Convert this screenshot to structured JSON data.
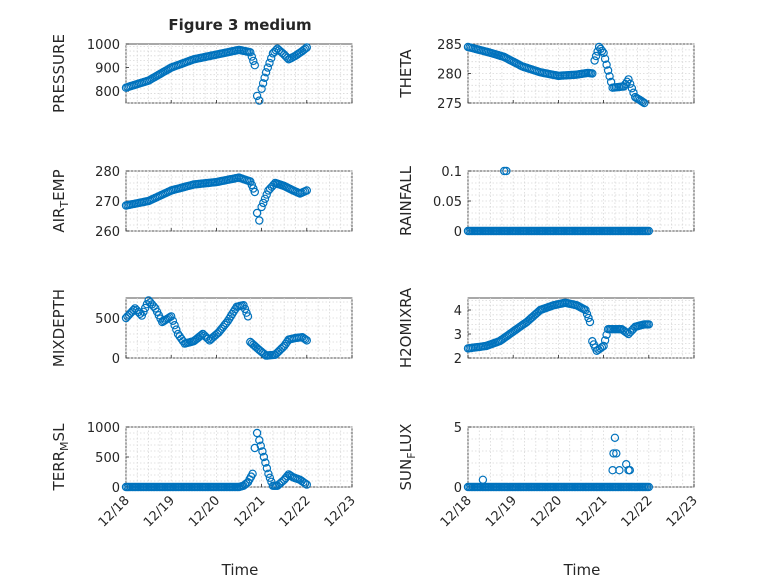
{
  "figure": {
    "title": "Figure 3 medium",
    "xlabel": "Time",
    "xticks": [
      "12/18",
      "12/19",
      "12/20",
      "12/21",
      "12/22",
      "12/23"
    ]
  },
  "chart_data": [
    {
      "type": "scatter",
      "id": "pressure",
      "title": "Figure 3 medium",
      "ylabel": "PRESSURE",
      "xlim": [
        0,
        5
      ],
      "ylim": [
        750,
        1000
      ],
      "yticks": [
        "800",
        "900",
        "1000"
      ],
      "ytick_values": [
        800,
        900,
        1000
      ],
      "xticks": [
        "12/18",
        "12/19",
        "12/20",
        "12/21",
        "12/22",
        "12/23"
      ],
      "keypoints": [
        [
          0,
          815
        ],
        [
          0.5,
          845
        ],
        [
          1,
          900
        ],
        [
          1.5,
          935
        ],
        [
          2,
          955
        ],
        [
          2.5,
          975
        ],
        [
          2.75,
          965
        ],
        [
          2.85,
          910
        ],
        [
          2.9,
          780
        ],
        [
          2.95,
          760
        ],
        [
          3.0,
          810
        ],
        [
          3.1,
          880
        ],
        [
          3.25,
          960
        ],
        [
          3.35,
          980
        ],
        [
          3.5,
          955
        ],
        [
          3.6,
          935
        ],
        [
          3.75,
          950
        ],
        [
          3.9,
          970
        ],
        [
          4.0,
          985
        ]
      ]
    },
    {
      "type": "scatter",
      "id": "theta",
      "title": "",
      "ylabel": "THETA",
      "xlim": [
        0,
        5
      ],
      "ylim": [
        275,
        285
      ],
      "yticks": [
        "275",
        "280",
        "285"
      ],
      "ytick_values": [
        275,
        280,
        285
      ],
      "xticks": [
        "12/18",
        "12/19",
        "12/20",
        "12/21",
        "12/22",
        "12/23"
      ],
      "keypoints": [
        [
          0,
          284.5
        ],
        [
          0.5,
          283.5
        ],
        [
          0.8,
          282.8
        ],
        [
          1.2,
          281.2
        ],
        [
          1.6,
          280.2
        ],
        [
          2.0,
          279.6
        ],
        [
          2.4,
          279.8
        ],
        [
          2.65,
          280.1
        ],
        [
          2.75,
          280.0
        ],
        [
          2.8,
          282.2
        ],
        [
          2.9,
          284.5
        ],
        [
          3.0,
          283.5
        ],
        [
          3.1,
          280.5
        ],
        [
          3.2,
          277.6
        ],
        [
          3.45,
          277.8
        ],
        [
          3.55,
          279.0
        ],
        [
          3.7,
          276.0
        ],
        [
          3.9,
          275.0
        ]
      ]
    },
    {
      "type": "scatter",
      "id": "air_temp",
      "title": "",
      "ylabel": "AIR_TEMP",
      "xlim": [
        0,
        5
      ],
      "ylim": [
        260,
        280
      ],
      "yticks": [
        "260",
        "270",
        "280"
      ],
      "ytick_values": [
        260,
        270,
        280
      ],
      "xticks": [
        "12/18",
        "12/19",
        "12/20",
        "12/21",
        "12/22",
        "12/23"
      ],
      "keypoints": [
        [
          0,
          268.5
        ],
        [
          0.5,
          270
        ],
        [
          1,
          273.5
        ],
        [
          1.5,
          275.5
        ],
        [
          2,
          276.3
        ],
        [
          2.5,
          277.8
        ],
        [
          2.75,
          276.5
        ],
        [
          2.85,
          273
        ],
        [
          2.9,
          266
        ],
        [
          2.95,
          263.5
        ],
        [
          3.0,
          268
        ],
        [
          3.15,
          273.5
        ],
        [
          3.3,
          276
        ],
        [
          3.5,
          275
        ],
        [
          3.7,
          273.5
        ],
        [
          3.85,
          272.5
        ],
        [
          4.0,
          273.5
        ]
      ]
    },
    {
      "type": "scatter",
      "id": "rainfall",
      "title": "",
      "ylabel": "RAINFALL",
      "xlim": [
        0,
        5
      ],
      "ylim": [
        0,
        0.1
      ],
      "yticks": [
        "0",
        "0.05",
        "0.1"
      ],
      "ytick_values": [
        0,
        0.05,
        0.1
      ],
      "xticks": [
        "12/18",
        "12/19",
        "12/20",
        "12/21",
        "12/22",
        "12/23"
      ],
      "keypoints": [
        [
          0,
          0
        ],
        [
          4.0,
          0
        ]
      ],
      "extra_points": [
        [
          0.8,
          0.1
        ],
        [
          0.85,
          0.1
        ]
      ]
    },
    {
      "type": "scatter",
      "id": "mixdepth",
      "title": "",
      "ylabel": "MIXDEPTH",
      "xlim": [
        0,
        5
      ],
      "ylim": [
        0,
        750
      ],
      "yticks": [
        "0",
        "500"
      ],
      "ytick_values": [
        0,
        500
      ],
      "xticks": [
        "12/18",
        "12/19",
        "12/20",
        "12/21",
        "12/22",
        "12/23"
      ],
      "keypoints": [
        [
          0,
          500
        ],
        [
          0.2,
          620
        ],
        [
          0.35,
          530
        ],
        [
          0.5,
          720
        ],
        [
          0.65,
          620
        ],
        [
          0.8,
          450
        ],
        [
          1.0,
          520
        ],
        [
          1.15,
          300
        ],
        [
          1.3,
          180
        ],
        [
          1.5,
          210
        ],
        [
          1.7,
          300
        ],
        [
          1.85,
          220
        ],
        [
          2.05,
          320
        ],
        [
          2.25,
          460
        ],
        [
          2.45,
          640
        ],
        [
          2.6,
          660
        ],
        [
          2.7,
          520
        ],
        [
          2.75,
          200
        ],
        [
          2.95,
          100
        ],
        [
          3.1,
          30
        ],
        [
          3.3,
          40
        ],
        [
          3.5,
          150
        ],
        [
          3.6,
          230
        ],
        [
          3.75,
          250
        ],
        [
          3.9,
          260
        ],
        [
          4.0,
          220
        ]
      ]
    },
    {
      "type": "scatter",
      "id": "h2omixra",
      "title": "",
      "ylabel": "H2OMIXRA",
      "xlim": [
        0,
        5
      ],
      "ylim": [
        2,
        4.5
      ],
      "yticks": [
        "2",
        "3",
        "4"
      ],
      "ytick_values": [
        2,
        3,
        4
      ],
      "xticks": [
        "12/18",
        "12/19",
        "12/20",
        "12/21",
        "12/22",
        "12/23"
      ],
      "keypoints": [
        [
          0,
          2.4
        ],
        [
          0.4,
          2.5
        ],
        [
          0.7,
          2.7
        ],
        [
          1.0,
          3.1
        ],
        [
          1.3,
          3.5
        ],
        [
          1.6,
          4.0
        ],
        [
          1.9,
          4.2
        ],
        [
          2.15,
          4.3
        ],
        [
          2.4,
          4.2
        ],
        [
          2.6,
          4.0
        ],
        [
          2.7,
          3.5
        ],
        [
          2.75,
          2.7
        ],
        [
          2.85,
          2.3
        ],
        [
          3.0,
          2.5
        ],
        [
          3.1,
          3.2
        ],
        [
          3.4,
          3.2
        ],
        [
          3.55,
          3.0
        ],
        [
          3.7,
          3.3
        ],
        [
          3.9,
          3.4
        ],
        [
          4.0,
          3.4
        ]
      ]
    },
    {
      "type": "scatter",
      "id": "terr_msl",
      "title": "",
      "ylabel": "TERR_MSL",
      "xlim": [
        0,
        5
      ],
      "ylim": [
        0,
        1000
      ],
      "yticks": [
        "0",
        "500",
        "1000"
      ],
      "ytick_values": [
        0,
        500,
        1000
      ],
      "xticks": [
        "12/18",
        "12/19",
        "12/20",
        "12/21",
        "12/22",
        "12/23"
      ],
      "keypoints": [
        [
          0,
          0
        ],
        [
          2.5,
          0
        ],
        [
          2.6,
          20
        ],
        [
          2.7,
          80
        ],
        [
          2.8,
          220
        ],
        [
          2.85,
          650
        ],
        [
          2.9,
          900
        ],
        [
          2.95,
          780
        ],
        [
          3.05,
          500
        ],
        [
          3.15,
          220
        ],
        [
          3.25,
          20
        ],
        [
          3.35,
          20
        ],
        [
          3.5,
          120
        ],
        [
          3.6,
          210
        ],
        [
          3.7,
          160
        ],
        [
          3.85,
          120
        ],
        [
          4.0,
          40
        ]
      ]
    },
    {
      "type": "scatter",
      "id": "sun_flux",
      "title": "",
      "ylabel": "SUN_FLUX",
      "xlim": [
        0,
        5
      ],
      "ylim": [
        0,
        5
      ],
      "yticks": [
        "0",
        "5"
      ],
      "ytick_values": [
        0,
        5
      ],
      "xticks": [
        "12/18",
        "12/19",
        "12/20",
        "12/21",
        "12/22",
        "12/23"
      ],
      "keypoints": [
        [
          0,
          0
        ],
        [
          4.0,
          0
        ]
      ],
      "extra_points": [
        [
          0.33,
          0.6
        ],
        [
          3.2,
          1.4
        ],
        [
          3.22,
          2.8
        ],
        [
          3.25,
          4.1
        ],
        [
          3.28,
          2.8
        ],
        [
          3.35,
          1.4
        ],
        [
          3.5,
          1.9
        ],
        [
          3.55,
          1.4
        ],
        [
          3.58,
          1.4
        ]
      ]
    }
  ]
}
